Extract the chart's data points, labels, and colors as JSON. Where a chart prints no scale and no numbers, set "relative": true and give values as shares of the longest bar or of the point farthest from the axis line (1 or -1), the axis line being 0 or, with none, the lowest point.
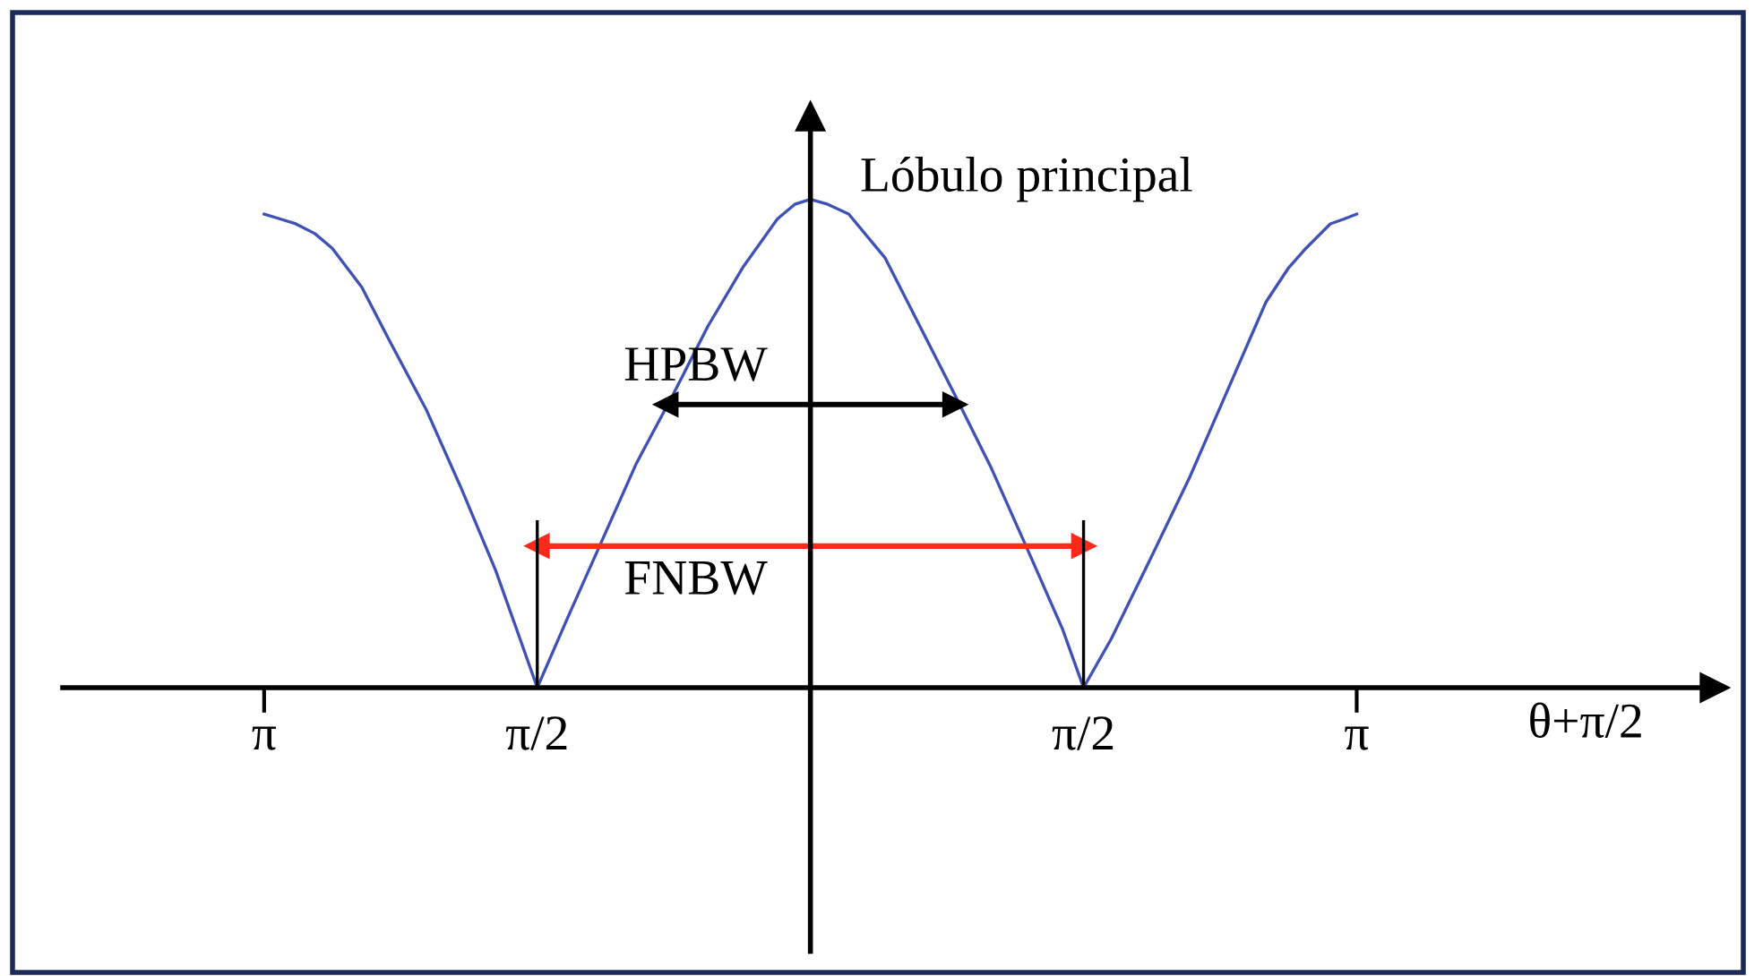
{
  "chart_data": {
    "type": "line",
    "relative": true,
    "xlabel": "θ+π/2",
    "ylabel": "Lóbulo principal",
    "xlim": [
      -4.3,
      5.2
    ],
    "xticks": [
      {
        "value": -3.1416,
        "label": "π"
      },
      {
        "value": -1.5708,
        "label": "π/2"
      },
      {
        "value": 1.5708,
        "label": "π/2"
      },
      {
        "value": 3.1416,
        "label": "π"
      }
    ],
    "marker": "none",
    "line_style": "solid",
    "series": [
      {
        "color": "#3f51b5",
        "x": [
          -3.1416,
          -3.05,
          -2.96,
          -2.85,
          -2.75,
          -2.58,
          -2.42,
          -2.21,
          -2.01,
          -1.81,
          -1.67,
          -1.5708,
          -1.4,
          -1.2,
          -1.0,
          -0.79,
          -0.59,
          -0.39,
          -0.19,
          -0.09,
          0,
          0.1,
          0.22,
          0.43,
          0.63,
          0.83,
          1.04,
          1.24,
          1.45,
          1.5708,
          1.73,
          1.95,
          2.18,
          2.4,
          2.62,
          2.75,
          2.85,
          2.99,
          3.07,
          3.1416
        ],
        "values": [
          0.97,
          0.96,
          0.95,
          0.93,
          0.9,
          0.82,
          0.71,
          0.57,
          0.41,
          0.24,
          0.1,
          0,
          0.14,
          0.3,
          0.46,
          0.6,
          0.74,
          0.86,
          0.96,
          0.99,
          1,
          0.99,
          0.97,
          0.88,
          0.74,
          0.6,
          0.45,
          0.29,
          0.12,
          0,
          0.1,
          0.26,
          0.43,
          0.61,
          0.79,
          0.86,
          0.9,
          0.95,
          0.96,
          0.97
        ]
      },
      {
        "color": "#000000",
        "marker": "triangle",
        "x": [
          -0.83,
          0.83
        ],
        "values": [
          0.58,
          0.58
        ]
      },
      {
        "color": "#ff2a1a",
        "marker": "triangle",
        "x": [
          -1.5708,
          1.5708
        ],
        "values": [
          0.29,
          0.29
        ]
      },
      {
        "color": "#000000",
        "x": [
          -1.5708,
          -1.5708
        ],
        "values": [
          0,
          0.34
        ]
      },
      {
        "color": "#000000",
        "x": [
          1.5708,
          1.5708
        ],
        "values": [
          0,
          0.34
        ]
      }
    ],
    "annotations": [
      {
        "text": "HPBW",
        "x": -0.66,
        "y": 0.58
      },
      {
        "text": "FNBW",
        "x": -0.66,
        "y": 0.29
      }
    ]
  }
}
